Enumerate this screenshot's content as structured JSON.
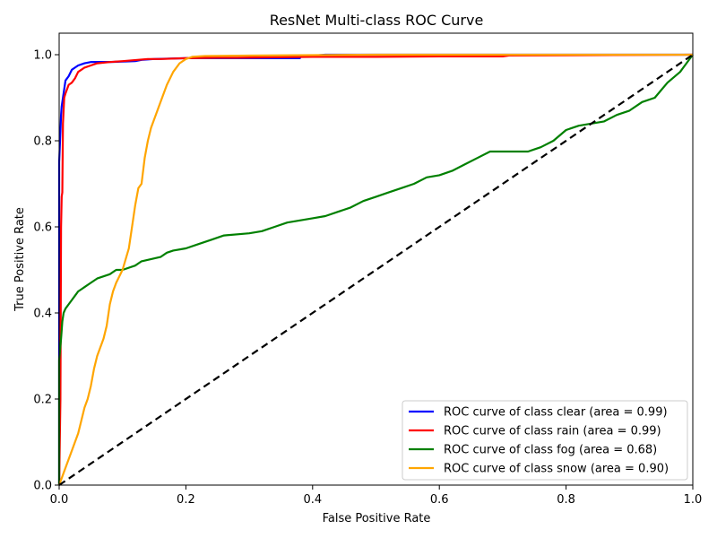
{
  "chart_data": {
    "type": "line",
    "title": "ResNet Multi-class ROC Curve",
    "xlabel": "False Positive Rate",
    "ylabel": "True Positive Rate",
    "xlim": [
      0.0,
      1.0
    ],
    "ylim": [
      0.0,
      1.05
    ],
    "x_ticks": [
      "0.0",
      "0.2",
      "0.4",
      "0.6",
      "0.8",
      "1.0"
    ],
    "y_ticks": [
      "0.0",
      "0.2",
      "0.4",
      "0.6",
      "0.8",
      "1.0"
    ],
    "grid": false,
    "legend_position": "lower-right",
    "series": [
      {
        "name": "ROC curve of class clear (area = 0.99)",
        "color": "#0000ff",
        "x": [
          0,
          0,
          0.002,
          0.003,
          0.004,
          0.006,
          0.008,
          0.01,
          0.015,
          0.02,
          0.025,
          0.03,
          0.04,
          0.05,
          0.08,
          0.12,
          0.13,
          0.15,
          0.2,
          0.3,
          0.38,
          0.38,
          0.42,
          0.5,
          0.6,
          0.7,
          0.8,
          1.0
        ],
        "y": [
          0,
          0.75,
          0.82,
          0.86,
          0.88,
          0.9,
          0.92,
          0.94,
          0.95,
          0.965,
          0.97,
          0.975,
          0.98,
          0.983,
          0.983,
          0.985,
          0.988,
          0.99,
          0.992,
          0.992,
          0.992,
          0.995,
          1.0,
          1.0,
          1.0,
          1.0,
          1.0,
          1.0
        ]
      },
      {
        "name": "ROC curve of class rain (area = 0.99)",
        "color": "#ff0000",
        "x": [
          0,
          0.002,
          0.003,
          0.004,
          0.005,
          0.006,
          0.008,
          0.01,
          0.015,
          0.02,
          0.025,
          0.03,
          0.035,
          0.04,
          0.05,
          0.06,
          0.08,
          0.1,
          0.14,
          0.16,
          0.2,
          0.25,
          0.28,
          0.4,
          0.5,
          0.6,
          0.7,
          0.71,
          1.0
        ],
        "y": [
          0,
          0.2,
          0.6,
          0.67,
          0.68,
          0.84,
          0.9,
          0.91,
          0.93,
          0.935,
          0.945,
          0.96,
          0.965,
          0.97,
          0.975,
          0.98,
          0.983,
          0.985,
          0.99,
          0.99,
          0.992,
          0.993,
          0.993,
          0.995,
          0.995,
          0.996,
          0.996,
          0.998,
          1.0
        ]
      },
      {
        "name": "ROC curve of class fog (area = 0.68)",
        "color": "#008000",
        "x": [
          0,
          0,
          0.003,
          0.005,
          0.007,
          0.01,
          0.015,
          0.02,
          0.025,
          0.03,
          0.035,
          0.04,
          0.05,
          0.06,
          0.07,
          0.08,
          0.09,
          0.1,
          0.12,
          0.13,
          0.16,
          0.17,
          0.18,
          0.2,
          0.22,
          0.24,
          0.26,
          0.3,
          0.32,
          0.34,
          0.36,
          0.4,
          0.42,
          0.44,
          0.46,
          0.48,
          0.5,
          0.52,
          0.54,
          0.56,
          0.58,
          0.6,
          0.62,
          0.64,
          0.66,
          0.68,
          0.7,
          0.74,
          0.75,
          0.76,
          0.78,
          0.8,
          0.82,
          0.84,
          0.86,
          0.88,
          0.9,
          0.92,
          0.94,
          0.96,
          0.98,
          1.0
        ],
        "y": [
          0,
          0.29,
          0.34,
          0.38,
          0.4,
          0.41,
          0.42,
          0.43,
          0.44,
          0.45,
          0.455,
          0.46,
          0.47,
          0.48,
          0.485,
          0.49,
          0.5,
          0.5,
          0.51,
          0.52,
          0.53,
          0.54,
          0.545,
          0.55,
          0.56,
          0.57,
          0.58,
          0.585,
          0.59,
          0.6,
          0.61,
          0.62,
          0.625,
          0.635,
          0.645,
          0.66,
          0.67,
          0.68,
          0.69,
          0.7,
          0.715,
          0.72,
          0.73,
          0.745,
          0.76,
          0.775,
          0.775,
          0.775,
          0.78,
          0.785,
          0.8,
          0.825,
          0.835,
          0.84,
          0.845,
          0.86,
          0.87,
          0.89,
          0.9,
          0.935,
          0.96,
          1.0
        ]
      },
      {
        "name": "ROC curve of class snow (area = 0.90)",
        "color": "#ffa500",
        "x": [
          0,
          0.01,
          0.02,
          0.025,
          0.03,
          0.035,
          0.04,
          0.045,
          0.05,
          0.055,
          0.06,
          0.065,
          0.07,
          0.075,
          0.08,
          0.085,
          0.09,
          0.1,
          0.11,
          0.115,
          0.12,
          0.125,
          0.13,
          0.135,
          0.14,
          0.145,
          0.15,
          0.16,
          0.17,
          0.18,
          0.19,
          0.2,
          0.21,
          0.23,
          0.3,
          0.4,
          0.5,
          0.6,
          0.7,
          0.8,
          0.9,
          1.0
        ],
        "y": [
          0,
          0.04,
          0.08,
          0.1,
          0.12,
          0.15,
          0.18,
          0.2,
          0.23,
          0.27,
          0.3,
          0.32,
          0.34,
          0.37,
          0.42,
          0.45,
          0.47,
          0.5,
          0.55,
          0.6,
          0.65,
          0.69,
          0.7,
          0.76,
          0.8,
          0.83,
          0.85,
          0.89,
          0.93,
          0.96,
          0.98,
          0.99,
          0.995,
          0.997,
          0.998,
          0.999,
          1.0,
          1.0,
          1.0,
          1.0,
          1.0,
          1.0
        ]
      },
      {
        "name": "",
        "color": "#000000",
        "dashed": true,
        "x": [
          0,
          1
        ],
        "y": [
          0,
          1
        ]
      }
    ]
  }
}
